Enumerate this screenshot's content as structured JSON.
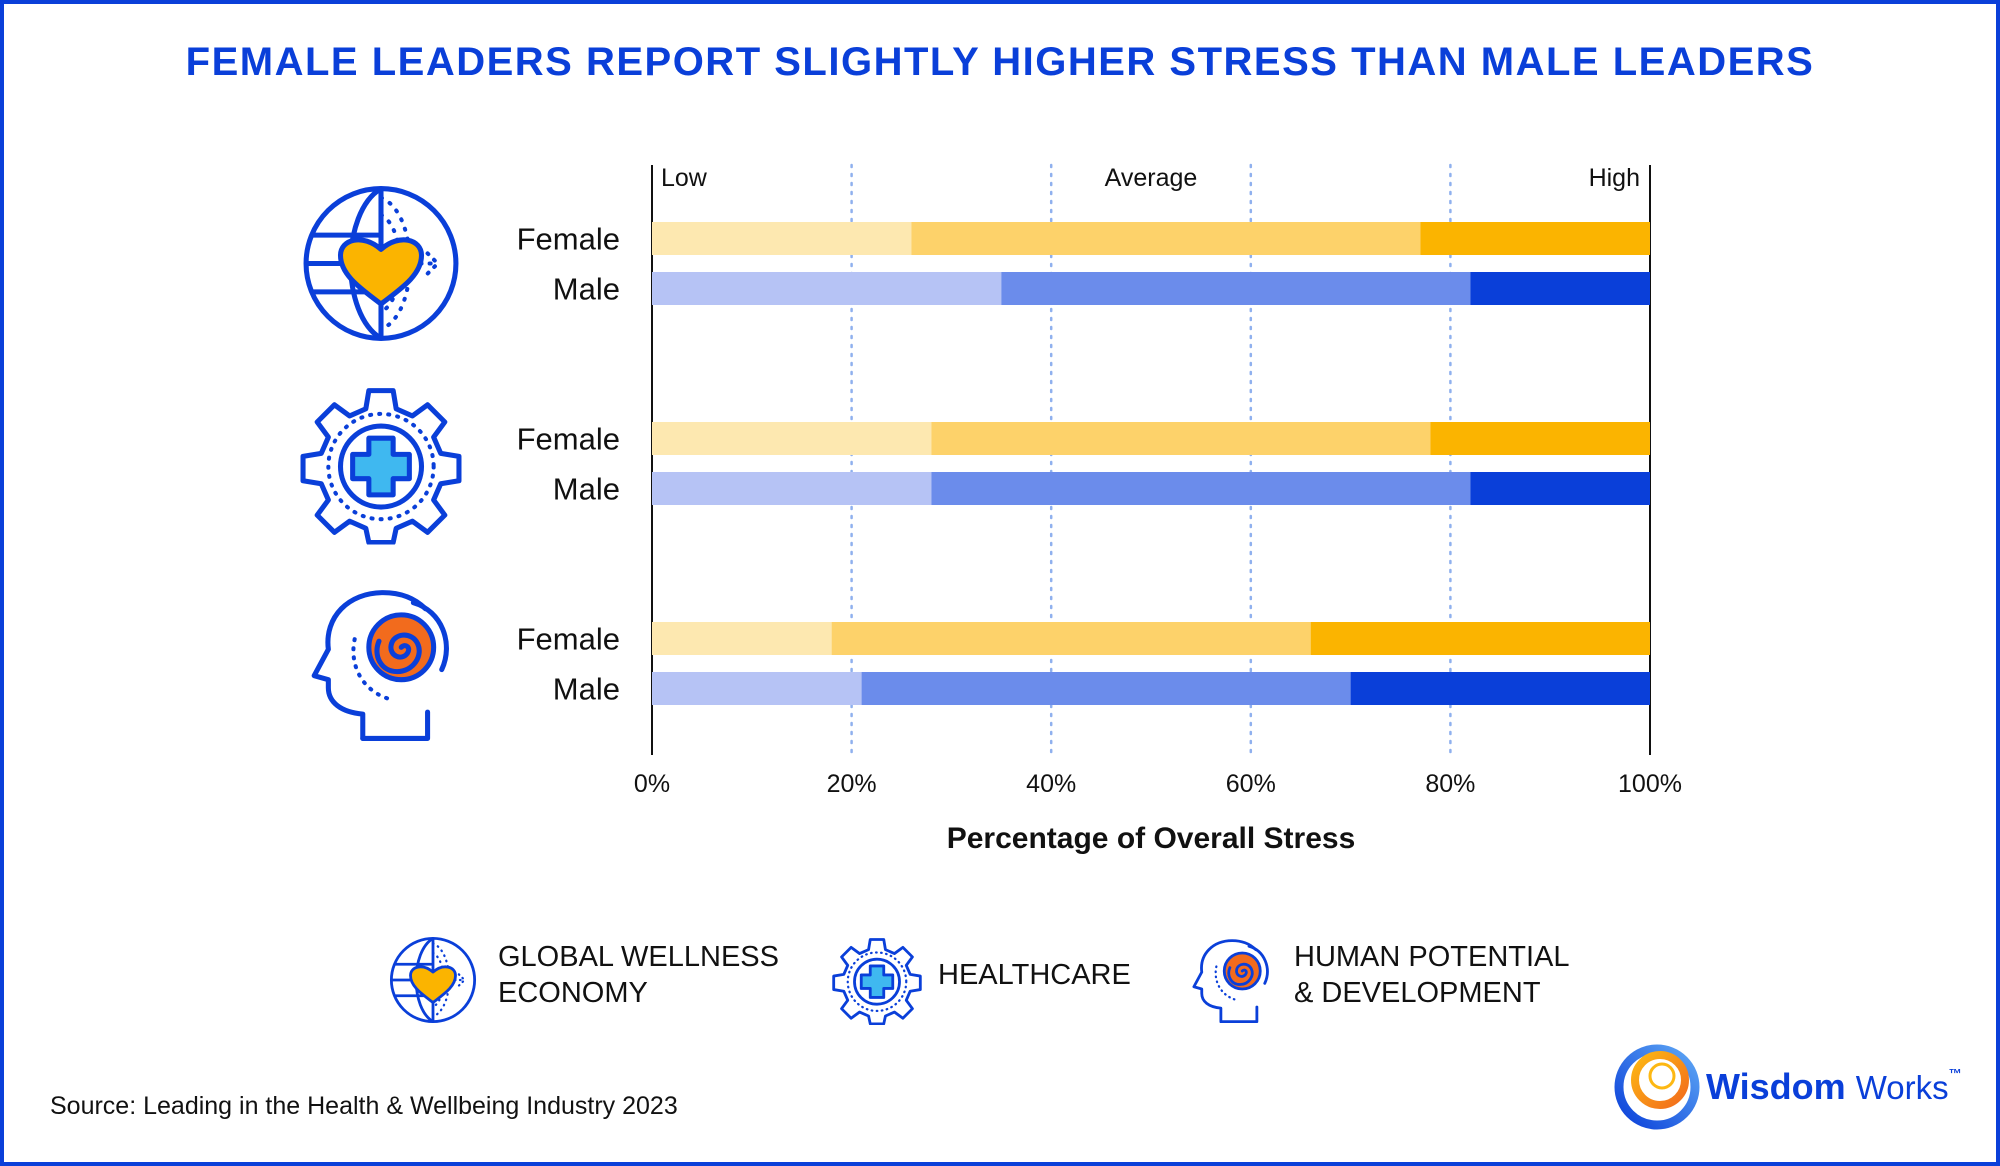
{
  "title": "FEMALE LEADERS REPORT SLIGHTLY HIGHER STRESS THAN MALE LEADERS",
  "chart_data": {
    "type": "bar",
    "orientation": "horizontal",
    "stacked": true,
    "scale_labels": [
      "Low",
      "Average",
      "High"
    ],
    "xlabel": "Percentage of Overall Stress",
    "xticks": [
      "0%",
      "20%",
      "40%",
      "60%",
      "80%",
      "100%"
    ],
    "xlim": [
      0,
      100
    ],
    "grid": "dotted vertical lines at 20% intervals",
    "groups": [
      {
        "name": "GLOBAL WELLNESS ECONOMY",
        "icon": "globe-heart-icon",
        "bars": [
          {
            "label": "Female",
            "segments": [
              26,
              51,
              23
            ]
          },
          {
            "label": "Male",
            "segments": [
              35,
              47,
              18
            ]
          }
        ]
      },
      {
        "name": "HEALTHCARE",
        "icon": "gear-plus-icon",
        "bars": [
          {
            "label": "Female",
            "segments": [
              28,
              50,
              22
            ]
          },
          {
            "label": "Male",
            "segments": [
              28,
              54,
              18
            ]
          }
        ]
      },
      {
        "name": "HUMAN POTENTIAL & DEVELOPMENT",
        "icon": "head-spiral-icon",
        "bars": [
          {
            "label": "Female",
            "segments": [
              18,
              48,
              34
            ]
          },
          {
            "label": "Male",
            "segments": [
              21,
              49,
              30
            ]
          }
        ]
      }
    ],
    "colors": {
      "Female": [
        "#FDE8B0",
        "#FDD26A",
        "#FBB400"
      ],
      "Male": [
        "#B6C3F5",
        "#6B8CEB",
        "#0A3FD9"
      ]
    }
  },
  "legend": [
    {
      "icon": "globe-heart-icon",
      "lines": [
        "GLOBAL WELLNESS",
        "ECONOMY"
      ]
    },
    {
      "icon": "gear-plus-icon",
      "lines": [
        "HEALTHCARE"
      ]
    },
    {
      "icon": "head-spiral-icon",
      "lines": [
        "HUMAN POTENTIAL",
        "& DEVELOPMENT"
      ]
    }
  ],
  "source": "Source: Leading in the Health & Wellbeing Industry 2023",
  "brand": {
    "name_a": "Wisdom",
    "name_b": "Works",
    "tm": "™"
  }
}
